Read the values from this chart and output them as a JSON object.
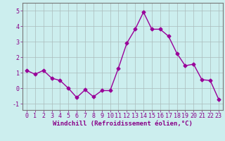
{
  "x": [
    0,
    1,
    2,
    3,
    4,
    5,
    6,
    7,
    8,
    9,
    10,
    11,
    12,
    13,
    14,
    15,
    16,
    17,
    18,
    19,
    20,
    21,
    22,
    23
  ],
  "y": [
    1.15,
    0.9,
    1.15,
    0.65,
    0.5,
    0.0,
    -0.6,
    -0.1,
    -0.55,
    -0.15,
    -0.15,
    1.3,
    2.9,
    3.8,
    4.9,
    3.8,
    3.8,
    3.35,
    2.25,
    1.45,
    1.55,
    0.55,
    0.5,
    -0.7
  ],
  "line_color": "#990099",
  "marker": "D",
  "marker_size": 2.5,
  "bg_color": "#cceeee",
  "grid_color": "#aabbbb",
  "xlabel": "Windchill (Refroidissement éolien,°C)",
  "xlim": [
    -0.5,
    23.5
  ],
  "ylim": [
    -1.4,
    5.5
  ],
  "yticks": [
    -1,
    0,
    1,
    2,
    3,
    4,
    5
  ],
  "xtick_labels": [
    "0",
    "1",
    "2",
    "3",
    "4",
    "5",
    "6",
    "7",
    "8",
    "9",
    "10",
    "11",
    "12",
    "13",
    "14",
    "15",
    "16",
    "17",
    "18",
    "19",
    "20",
    "21",
    "22",
    "23"
  ],
  "label_fontsize": 6.5,
  "tick_fontsize": 6,
  "label_color": "#880088",
  "tick_color": "#880088",
  "line_width": 1.0
}
